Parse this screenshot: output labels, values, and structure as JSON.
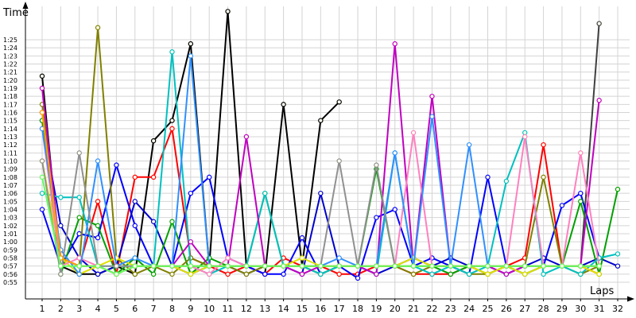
{
  "chart_data": {
    "type": "line",
    "ylabel": "Time",
    "xlabel": "Laps",
    "x": [
      1,
      2,
      3,
      4,
      5,
      6,
      7,
      8,
      9,
      10,
      11,
      12,
      13,
      14,
      15,
      16,
      17,
      18,
      19,
      20,
      21,
      22,
      23,
      24,
      25,
      26,
      27,
      28,
      29,
      30,
      31,
      32
    ],
    "xtick_labels": [
      "1",
      "2",
      "3",
      "4",
      "5",
      "6",
      "7",
      "8",
      "9",
      "10",
      "11",
      "12",
      "13",
      "14",
      "15",
      "16",
      "17",
      "18",
      "19",
      "20",
      "21",
      "22",
      "23",
      "24",
      "25",
      "26",
      "27",
      "28",
      "29",
      "30",
      "31",
      "32"
    ],
    "ytick_values": [
      55,
      56,
      57,
      58,
      59,
      60,
      61,
      62,
      63,
      64,
      65,
      66,
      67,
      68,
      69,
      70,
      71,
      72,
      73,
      74,
      75,
      76,
      77,
      78,
      79,
      80,
      81,
      82,
      83,
      84,
      85
    ],
    "ytick_labels": [
      "0:55",
      "0:56",
      "0:57",
      "0:58",
      "0:59",
      "1:00",
      "1:01",
      "1:02",
      "1:03",
      "1:04",
      "1:05",
      "1:06",
      "1:07",
      "1:08",
      "1:09",
      "1:10",
      "1:11",
      "1:12",
      "1:13",
      "1:14",
      "1:15",
      "1:16",
      "1:17",
      "1:18",
      "1:19",
      "1:20",
      "1:21",
      "1:22",
      "1:23",
      "1:24",
      "1:25"
    ],
    "ylim": [
      54.5,
      91
    ],
    "xlim": [
      0.2,
      32.6
    ],
    "grid": true,
    "legend": false,
    "series": [
      {
        "color": "#000000",
        "values": [
          80.5,
          57,
          56,
          56,
          57,
          56,
          72.5,
          75,
          84.5,
          57,
          88.5,
          57,
          56,
          77,
          57,
          75,
          77.3,
          null,
          null,
          null,
          null,
          null,
          null,
          null,
          null,
          null,
          null,
          null,
          null,
          null,
          null,
          null
        ]
      },
      {
        "color": "#404040",
        "values": [
          null,
          null,
          null,
          null,
          null,
          null,
          null,
          null,
          null,
          null,
          null,
          null,
          null,
          null,
          null,
          null,
          null,
          null,
          null,
          null,
          null,
          null,
          null,
          null,
          null,
          null,
          null,
          null,
          null,
          57,
          87,
          null
        ]
      },
      {
        "color": "#ff0000",
        "values": [
          76,
          58,
          57,
          65,
          56,
          68,
          68,
          74,
          58,
          57,
          56,
          57,
          56,
          58,
          57,
          57,
          56,
          56,
          57,
          57,
          56,
          56,
          56,
          57,
          56,
          57,
          58,
          72,
          57,
          57,
          56,
          null
        ]
      },
      {
        "color": "#0000ff",
        "values": [
          64,
          57,
          61,
          60.5,
          69.5,
          62,
          57,
          57,
          66,
          68,
          58,
          57,
          56,
          56,
          60.5,
          56,
          57,
          55.5,
          63,
          64,
          57,
          58,
          57,
          56,
          68,
          57,
          56,
          57,
          64.5,
          66,
          58,
          null
        ]
      },
      {
        "color": "#0000cc",
        "values": [
          75,
          62,
          58,
          56,
          57,
          65,
          62.5,
          57,
          56,
          57,
          57,
          56,
          57,
          57,
          56,
          66,
          57,
          57,
          56,
          57,
          58,
          57,
          58,
          57,
          57,
          56,
          57,
          58,
          57,
          57,
          58,
          57
        ]
      },
      {
        "color": "#00a000",
        "values": [
          75,
          56,
          63,
          62,
          56,
          58,
          56,
          62.5,
          56,
          58,
          57,
          57,
          66,
          57,
          57,
          56,
          57,
          57,
          69,
          57,
          57,
          57,
          56,
          57,
          56,
          57,
          56,
          57,
          57,
          65,
          56,
          66.5
        ]
      },
      {
        "color": "#808000",
        "values": [
          77,
          58,
          57,
          86.5,
          58,
          56,
          57,
          56,
          58,
          57,
          57,
          56,
          57,
          57,
          57,
          56,
          57,
          57,
          57,
          57,
          56,
          57,
          57,
          56,
          56,
          57,
          57,
          68,
          57,
          56,
          57,
          null
        ]
      },
      {
        "color": "#00c0c0",
        "values": [
          66,
          65.5,
          65.5,
          57,
          57,
          57,
          57,
          83.5,
          57,
          56,
          57,
          57,
          66,
          57,
          57,
          56,
          57,
          57,
          56,
          71,
          57,
          56,
          57,
          56,
          57,
          67.5,
          73.5,
          56,
          57,
          56,
          58,
          58.5
        ]
      },
      {
        "color": "#c000c0",
        "values": [
          79,
          58,
          57,
          57,
          56,
          57,
          57,
          57,
          60,
          57,
          57,
          73,
          57,
          57,
          56,
          57,
          57,
          57,
          56,
          84.5,
          57,
          78,
          57,
          57,
          57,
          56,
          57,
          57,
          57,
          57,
          77.5,
          null
        ]
      },
      {
        "color": "#e0e000",
        "values": [
          70,
          58,
          56,
          57,
          58,
          57,
          57,
          57,
          56,
          57,
          57,
          57,
          57,
          57,
          58,
          57,
          57,
          57,
          57,
          57,
          58,
          57,
          57,
          57,
          56,
          57,
          56,
          57,
          57,
          57,
          56,
          null
        ]
      },
      {
        "color": "#ff80c0",
        "values": [
          74,
          57,
          58,
          57,
          56,
          57,
          57,
          57,
          57,
          56,
          58,
          57,
          57,
          57,
          57,
          57,
          57,
          57,
          57,
          57,
          73.5,
          57,
          57,
          57,
          57,
          57,
          73,
          57,
          57,
          71,
          57,
          null
        ]
      },
      {
        "color": "#3090ff",
        "values": [
          74,
          59,
          56,
          70,
          57,
          58,
          57,
          57,
          83,
          57,
          57,
          57,
          57,
          57,
          57,
          57,
          58,
          57,
          57,
          71,
          57,
          75.5,
          57,
          72,
          57,
          57,
          57,
          57,
          57,
          57,
          57,
          null
        ]
      },
      {
        "color": "#909090",
        "values": [
          70,
          56,
          71,
          57,
          57,
          57,
          57,
          57,
          57,
          57,
          57,
          57,
          57,
          57,
          57,
          57,
          70,
          57,
          69.5,
          57,
          57,
          57,
          57,
          57,
          57,
          57,
          57,
          57,
          57,
          57,
          57,
          null
        ]
      },
      {
        "color": "#ffa000",
        "values": [
          76,
          58,
          57,
          57,
          56,
          57,
          57,
          57,
          57,
          57,
          57,
          57,
          57,
          57,
          57,
          57,
          57,
          57,
          57,
          57,
          57,
          57,
          57,
          57,
          57,
          57,
          57,
          57,
          57,
          57,
          57,
          null
        ]
      },
      {
        "color": "#60ff60",
        "values": [
          68,
          57,
          57,
          57,
          56,
          57,
          57,
          57,
          57,
          57,
          57,
          57,
          57,
          57,
          57,
          57,
          57,
          57,
          57,
          57,
          57,
          57,
          57,
          57,
          57,
          57,
          57,
          57,
          57,
          57,
          57,
          null
        ]
      }
    ]
  }
}
